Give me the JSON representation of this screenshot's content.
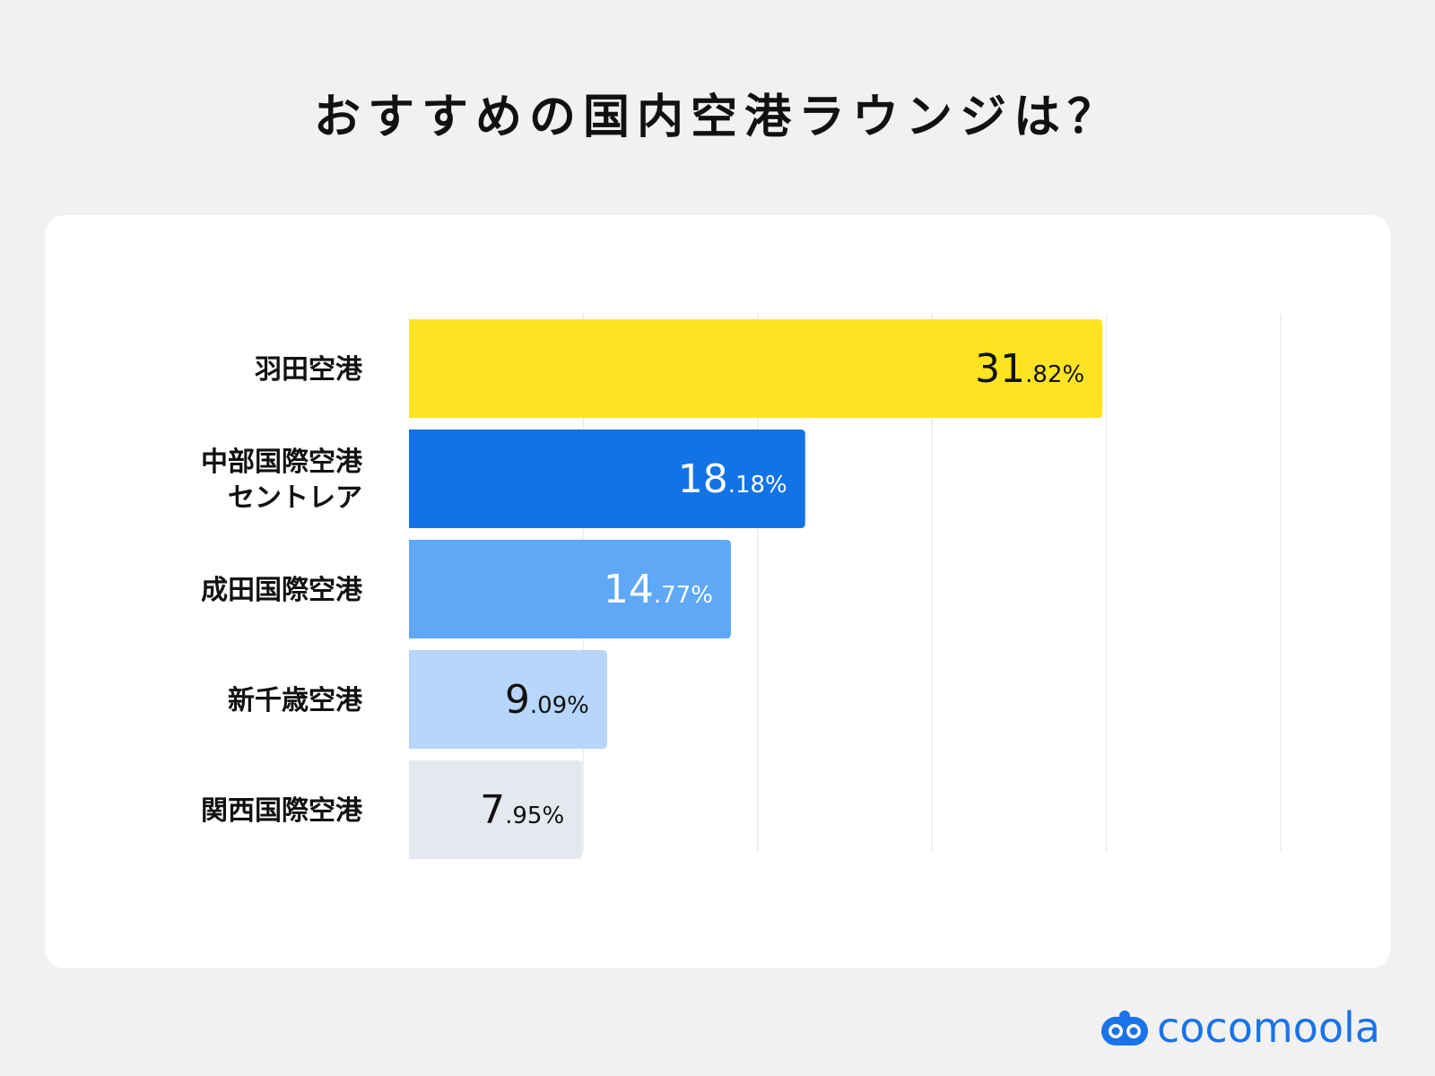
{
  "title": "おすすめの国内空港ラウンジは？",
  "brand": {
    "name": "cocomoola",
    "icon": "cocomoola-logo-icon",
    "color": "#1a73e8"
  },
  "chart_data": {
    "type": "bar",
    "orientation": "horizontal",
    "title": "おすすめの国内空港ラウンジは？",
    "categories": [
      [
        "羽田空港"
      ],
      [
        "中部国際空港",
        "セントレア"
      ],
      [
        "成田国際空港"
      ],
      [
        "新千歳空港"
      ],
      [
        "関西国際空港"
      ]
    ],
    "values": [
      31.82,
      18.18,
      14.77,
      9.09,
      7.95
    ],
    "value_labels": [
      {
        "int": "31",
        "dec": ".82%"
      },
      {
        "int": "18",
        "dec": ".18%"
      },
      {
        "int": "14",
        "dec": ".77%"
      },
      {
        "int": "9",
        "dec": ".09%"
      },
      {
        "int": "7",
        "dec": ".95%"
      }
    ],
    "colors": [
      "#fde423",
      "#1273e6",
      "#5ea8f5",
      "#b7d6fb",
      "#e5e9ef"
    ],
    "label_colors": [
      "#111111",
      "#ffffff",
      "#ffffff",
      "#111111",
      "#111111"
    ],
    "xlim": [
      0,
      40
    ],
    "grid": true,
    "legend": "none"
  }
}
